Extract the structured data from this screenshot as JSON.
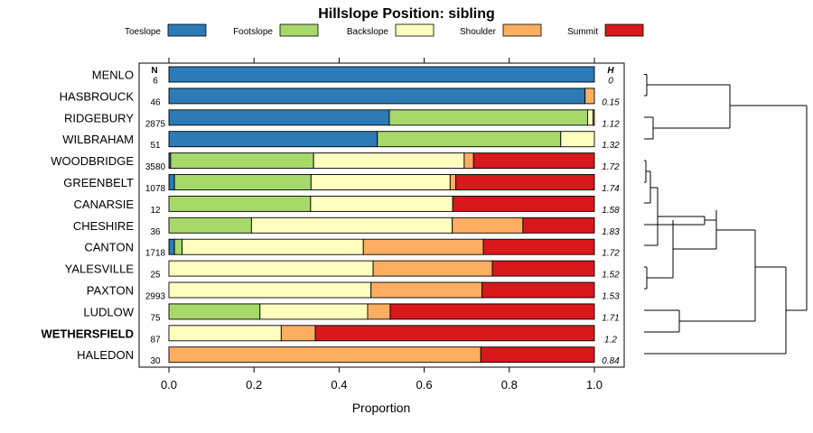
{
  "chart_data": {
    "type": "bar",
    "orientation": "horizontal-stacked",
    "title": "Hillslope Position: sibling",
    "xlabel": "Proportion",
    "ylabel": "",
    "xlim": [
      0,
      1
    ],
    "xticks": [
      "0.0",
      "0.2",
      "0.4",
      "0.6",
      "0.8",
      "1.0"
    ],
    "n_header": "N",
    "h_header": "H",
    "legend_position": "top",
    "series": [
      {
        "name": "Toeslope",
        "color": "#2C7BB6"
      },
      {
        "name": "Footslope",
        "color": "#A6D96A"
      },
      {
        "name": "Backslope",
        "color": "#FFFFBF"
      },
      {
        "name": "Shoulder",
        "color": "#FDAE61"
      },
      {
        "name": "Summit",
        "color": "#D7191C"
      }
    ],
    "rows": [
      {
        "name": "MENLO",
        "bold": false,
        "n": "6",
        "h": "0",
        "values": [
          1.0,
          0,
          0,
          0,
          0
        ]
      },
      {
        "name": "HASBROUCK",
        "bold": false,
        "n": "46",
        "h": "0.15",
        "values": [
          0.978,
          0,
          0,
          0.022,
          0
        ]
      },
      {
        "name": "RIDGEBURY",
        "bold": false,
        "n": "2875",
        "h": "1.12",
        "values": [
          0.518,
          0.466,
          0.013,
          0.003,
          0
        ]
      },
      {
        "name": "WILBRAHAM",
        "bold": false,
        "n": "51",
        "h": "1.32",
        "values": [
          0.49,
          0.431,
          0.079,
          0,
          0
        ]
      },
      {
        "name": "WOODBRIDGE",
        "bold": false,
        "n": "3580",
        "h": "1.72",
        "values": [
          0.004,
          0.336,
          0.354,
          0.022,
          0.284
        ]
      },
      {
        "name": "GREENBELT",
        "bold": false,
        "n": "1078",
        "h": "1.74",
        "values": [
          0.013,
          0.321,
          0.327,
          0.013,
          0.326
        ]
      },
      {
        "name": "CANARSIE",
        "bold": false,
        "n": "12",
        "h": "1.58",
        "values": [
          0,
          0.333,
          0.334,
          0,
          0.333
        ]
      },
      {
        "name": "CHESHIRE",
        "bold": false,
        "n": "36",
        "h": "1.83",
        "values": [
          0,
          0.194,
          0.472,
          0.166,
          0.168
        ]
      },
      {
        "name": "CANTON",
        "bold": false,
        "n": "1718",
        "h": "1.72",
        "values": [
          0.013,
          0.018,
          0.426,
          0.282,
          0.261
        ]
      },
      {
        "name": "YALESVILLE",
        "bold": false,
        "n": "25",
        "h": "1.52",
        "values": [
          0,
          0,
          0.48,
          0.28,
          0.24
        ]
      },
      {
        "name": "PAXTON",
        "bold": false,
        "n": "2993",
        "h": "1.53",
        "values": [
          0,
          0,
          0.475,
          0.261,
          0.264
        ]
      },
      {
        "name": "LUDLOW",
        "bold": false,
        "n": "75",
        "h": "1.71",
        "values": [
          0,
          0.214,
          0.253,
          0.053,
          0.48
        ]
      },
      {
        "name": "WETHERSFIELD",
        "bold": true,
        "n": "87",
        "h": "1.2",
        "values": [
          0,
          0,
          0.264,
          0.08,
          0.656
        ]
      },
      {
        "name": "HALEDON",
        "bold": false,
        "n": "30",
        "h": "0.84",
        "values": [
          0,
          0,
          0,
          0.733,
          0.267
        ]
      }
    ]
  }
}
